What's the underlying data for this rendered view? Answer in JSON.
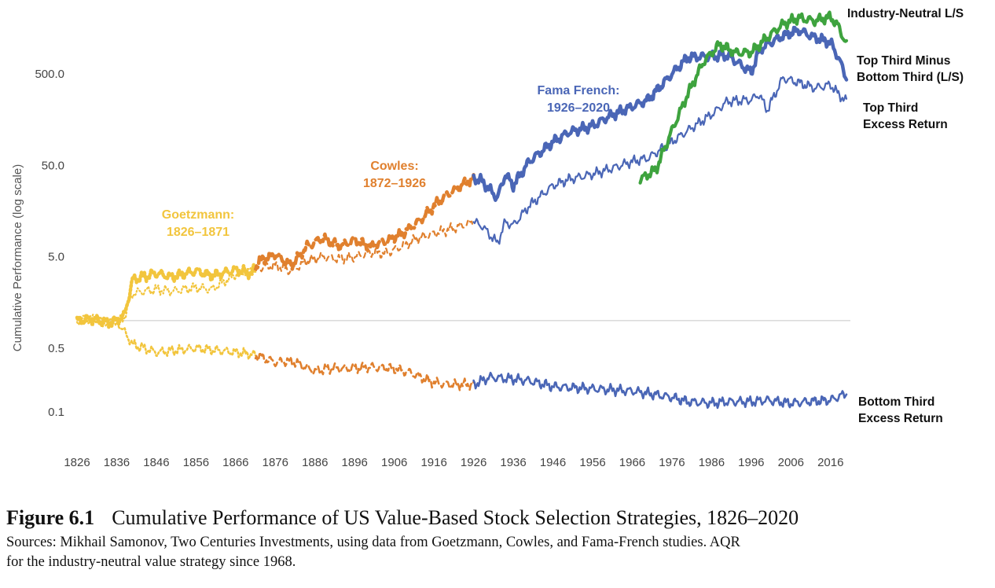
{
  "chart_data": {
    "type": "line",
    "y_scale": "log",
    "ylabel": "Cumulative Performance (log scale)",
    "y_ticks": [
      "500.0",
      "50.0",
      "5.0",
      "0.5",
      "0.1"
    ],
    "y_tick_values": [
      500,
      50,
      5,
      0.5,
      0.1
    ],
    "x_ticks": [
      "1826",
      "1836",
      "1846",
      "1856",
      "1866",
      "1876",
      "1886",
      "1896",
      "1906",
      "1916",
      "1926",
      "1936",
      "1946",
      "1956",
      "1966",
      "1976",
      "1986",
      "1996",
      "2006",
      "2016"
    ],
    "xlim": [
      1826,
      2021
    ],
    "reference_line": 1,
    "eras": [
      {
        "label": [
          "Goetzmann:",
          "1826–1871"
        ],
        "color": "#f2c53d"
      },
      {
        "label": [
          "Cowles:",
          "1872–1926"
        ],
        "color": "#e0802e"
      },
      {
        "label": [
          "Fama French:",
          "1926–2020"
        ],
        "color": "#4a66b6"
      }
    ],
    "industry_color": "#3ea33e",
    "series": [
      {
        "name": "Industry-Neutral L/S",
        "name_lines": [
          "Industry-Neutral L/S"
        ],
        "x": [
          1968,
          1972,
          1976,
          1980,
          1984,
          1988,
          1992,
          1996,
          2000,
          2004,
          2008,
          2012,
          2016,
          2018,
          2020
        ],
        "y": [
          35,
          45,
          120,
          300,
          680,
          1050,
          850,
          860,
          1250,
          1750,
          2050,
          1900,
          2100,
          1650,
          1050
        ]
      },
      {
        "name": "Top Third Minus Bottom Third (L/S)",
        "name_lines": [
          "Top Third Minus",
          "Bottom Third (L/S)"
        ],
        "x": [
          1826,
          1830,
          1834,
          1836,
          1838,
          1840,
          1846,
          1850,
          1856,
          1860,
          1866,
          1870,
          1872,
          1876,
          1880,
          1884,
          1888,
          1892,
          1896,
          1900,
          1904,
          1908,
          1912,
          1916,
          1920,
          1926,
          1928,
          1932,
          1934,
          1936,
          1940,
          1946,
          1950,
          1956,
          1960,
          1966,
          1970,
          1976,
          1980,
          1986,
          1990,
          1996,
          1998,
          2000,
          2004,
          2008,
          2012,
          2016,
          2018,
          2020
        ],
        "y": [
          1.0,
          1.05,
          0.95,
          1.0,
          1.15,
          2.8,
          3.3,
          3.0,
          3.5,
          3.1,
          3.6,
          3.3,
          4.5,
          5.3,
          4.0,
          6.5,
          8.0,
          6.5,
          7.5,
          6.5,
          7.5,
          9.0,
          12.0,
          18.0,
          25.0,
          36.0,
          34.0,
          22.0,
          40.0,
          30.0,
          55.0,
          90.0,
          115.0,
          135.0,
          170.0,
          220.0,
          260.0,
          500.0,
          760.0,
          780.0,
          800.0,
          520.0,
          900.0,
          1050.0,
          1300.0,
          1500.0,
          1250.0,
          1100.0,
          750.0,
          450.0
        ]
      },
      {
        "name": "Top Third Excess Return",
        "name_lines": [
          "Top Third",
          "Excess Return"
        ],
        "x": [
          1826,
          1830,
          1834,
          1836,
          1838,
          1840,
          1846,
          1850,
          1856,
          1860,
          1866,
          1870,
          1872,
          1876,
          1880,
          1884,
          1888,
          1892,
          1896,
          1900,
          1904,
          1908,
          1912,
          1916,
          1920,
          1926,
          1928,
          1932,
          1934,
          1936,
          1940,
          1946,
          1950,
          1956,
          1960,
          1966,
          1970,
          1976,
          1980,
          1986,
          1990,
          1996,
          1998,
          2000,
          2004,
          2008,
          2012,
          2016,
          2018,
          2020
        ],
        "y": [
          1.0,
          1.05,
          0.95,
          1.0,
          1.1,
          2.0,
          2.2,
          2.1,
          2.3,
          2.2,
          3.2,
          3.5,
          3.8,
          4.0,
          3.5,
          4.5,
          5.0,
          4.7,
          5.0,
          5.5,
          5.5,
          6.5,
          8.0,
          9.0,
          10.0,
          12.0,
          11.0,
          7.0,
          12.0,
          11.0,
          18.0,
          30.0,
          35.0,
          40.0,
          45.0,
          55.0,
          60.0,
          90.0,
          120.0,
          180.0,
          250.0,
          260.0,
          300.0,
          200.0,
          450.0,
          400.0,
          350.0,
          380.0,
          300.0,
          250.0
        ]
      },
      {
        "name": "Bottom Third Excess Return",
        "name_lines": [
          "Bottom Third",
          "Excess Return"
        ],
        "x": [
          1826,
          1832,
          1836,
          1838,
          1840,
          1846,
          1856,
          1866,
          1870,
          1876,
          1880,
          1886,
          1890,
          1896,
          1900,
          1906,
          1910,
          1916,
          1920,
          1926,
          1930,
          1936,
          1940,
          1946,
          1956,
          1966,
          1970,
          1976,
          1980,
          1986,
          1990,
          1996,
          2000,
          2006,
          2010,
          2016,
          2020
        ],
        "y": [
          1.0,
          0.95,
          1.0,
          0.75,
          0.55,
          0.45,
          0.5,
          0.45,
          0.43,
          0.35,
          0.36,
          0.28,
          0.3,
          0.3,
          0.31,
          0.3,
          0.27,
          0.21,
          0.2,
          0.2,
          0.24,
          0.23,
          0.22,
          0.19,
          0.18,
          0.17,
          0.16,
          0.145,
          0.13,
          0.125,
          0.13,
          0.13,
          0.135,
          0.125,
          0.13,
          0.135,
          0.16
        ]
      }
    ]
  },
  "caption": {
    "figure_label": "Figure 6.1",
    "title": "Cumulative Performance of US Value-Based Stock Selection Strategies, 1826–2020",
    "sources_line1": "Sources: Mikhail Samonov, Two Centuries Investments, using data from Goetzmann, Cowles, and Fama-French studies. AQR",
    "sources_line2": "for the industry-neutral value strategy since 1968."
  }
}
